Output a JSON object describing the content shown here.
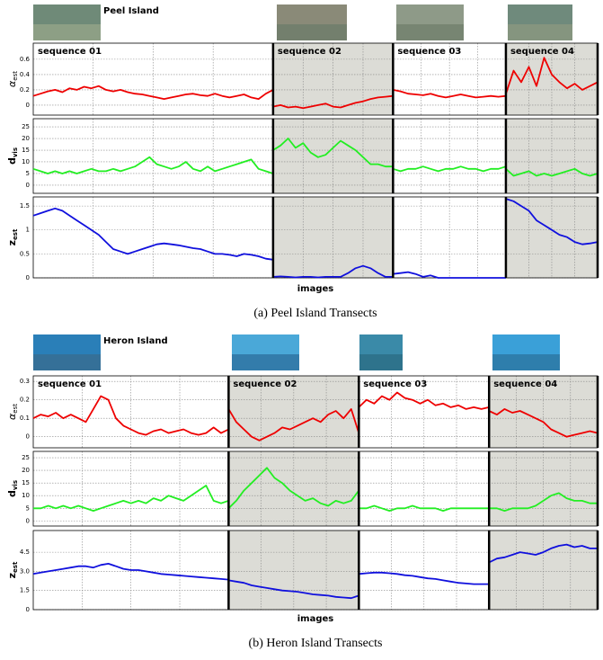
{
  "panels": [
    {
      "location": "Peel Island",
      "sequences": [
        "sequence 01",
        "sequence 02",
        "sequence 03",
        "sequence 04"
      ],
      "shaded": [
        false,
        true,
        false,
        true
      ],
      "xlabel": "images",
      "caption": "(a) Peel Island Transects"
    },
    {
      "location": "Heron Island",
      "sequences": [
        "sequence 01",
        "sequence 02",
        "sequence 03",
        "sequence 04"
      ],
      "shaded": [
        false,
        true,
        false,
        true
      ],
      "xlabel": "images",
      "caption": "(b) Heron Island Transects"
    }
  ],
  "chart_data": [
    {
      "type": "line",
      "ylabel": {
        "symbol": "α",
        "subscript": "est"
      },
      "ylim": [
        -0.13,
        0.81
      ],
      "yticks": [
        0,
        0.2,
        0.4,
        0.6
      ],
      "grid": true,
      "color": "#ee0000",
      "series": [
        {
          "values": [
            0.12,
            0.15,
            0.18,
            0.2,
            0.17,
            0.22,
            0.2,
            0.24,
            0.22,
            0.25,
            0.2,
            0.18,
            0.2,
            0.17,
            0.15,
            0.14,
            0.12,
            0.1,
            0.08,
            0.1,
            0.12,
            0.14,
            0.15,
            0.13,
            0.12,
            0.15,
            0.12,
            0.1,
            0.12,
            0.14,
            0.1,
            0.08,
            0.15,
            0.2
          ]
        },
        {
          "values": [
            -0.02,
            0,
            -0.03,
            -0.02,
            -0.04,
            -0.02,
            0,
            0.02,
            -0.02,
            -0.03,
            0,
            0.03,
            0.05,
            0.08,
            0.1,
            0.11,
            0.12
          ]
        },
        {
          "values": [
            0.2,
            0.18,
            0.15,
            0.14,
            0.13,
            0.15,
            0.12,
            0.1,
            0.12,
            0.14,
            0.12,
            0.1,
            0.11,
            0.12,
            0.11,
            0.12
          ]
        },
        {
          "values": [
            0.15,
            0.45,
            0.3,
            0.5,
            0.25,
            0.62,
            0.4,
            0.3,
            0.22,
            0.28,
            0.2,
            0.25,
            0.3
          ]
        }
      ]
    },
    {
      "type": "line",
      "ylabel": {
        "symbol": "d",
        "subscript": "vis"
      },
      "ylim": [
        -3.5,
        28.5
      ],
      "yticks": [
        0,
        5,
        10,
        15,
        20,
        25
      ],
      "grid": true,
      "color": "#22ee22",
      "series": [
        {
          "values": [
            7,
            6,
            5,
            6,
            5,
            6,
            5,
            6,
            7,
            6,
            6,
            7,
            6,
            7,
            8,
            10,
            12,
            9,
            8,
            7,
            8,
            10,
            7,
            6,
            8,
            6,
            7,
            8,
            9,
            10,
            11,
            7,
            6,
            5
          ]
        },
        {
          "values": [
            15,
            17,
            20,
            16,
            18,
            14,
            12,
            13,
            16,
            19,
            17,
            15,
            12,
            9,
            9,
            8,
            8
          ]
        },
        {
          "values": [
            7,
            6,
            7,
            7,
            8,
            7,
            6,
            7,
            7,
            8,
            7,
            7,
            6,
            7,
            7,
            8
          ]
        },
        {
          "values": [
            7,
            4,
            5,
            6,
            4,
            5,
            4,
            5,
            6,
            7,
            5,
            4,
            5
          ]
        }
      ]
    },
    {
      "type": "line",
      "ylabel": {
        "symbol": "z",
        "subscript": "est"
      },
      "ylim": [
        0,
        1.69
      ],
      "yticks": [
        0,
        0.5,
        1,
        1.5
      ],
      "grid": true,
      "color": "#1010dd",
      "series": [
        {
          "values": [
            1.3,
            1.35,
            1.4,
            1.45,
            1.4,
            1.3,
            1.2,
            1.1,
            1.0,
            0.9,
            0.75,
            0.6,
            0.55,
            0.5,
            0.55,
            0.6,
            0.65,
            0.7,
            0.72,
            0.7,
            0.68,
            0.65,
            0.62,
            0.6,
            0.55,
            0.5,
            0.5,
            0.48,
            0.45,
            0.5,
            0.48,
            0.45,
            0.4,
            0.38
          ]
        },
        {
          "values": [
            0.02,
            0.03,
            0.02,
            0.01,
            0.02,
            0.02,
            0.01,
            0.02,
            0.02,
            0.02,
            0.1,
            0.2,
            0.25,
            0.2,
            0.1,
            0.02,
            0.02
          ]
        },
        {
          "values": [
            0.08,
            0.1,
            0.12,
            0.08,
            0.02,
            0.05,
            0,
            0,
            0,
            0,
            0,
            0,
            0,
            0,
            0,
            0
          ]
        },
        {
          "values": [
            1.65,
            1.6,
            1.5,
            1.4,
            1.2,
            1.1,
            1.0,
            0.9,
            0.85,
            0.75,
            0.7,
            0.72,
            0.75
          ]
        }
      ]
    },
    {
      "type": "line",
      "ylabel": {
        "symbol": "α",
        "subscript": "est"
      },
      "ylim": [
        -0.06,
        0.33
      ],
      "yticks": [
        0,
        0.1,
        0.2,
        0.3
      ],
      "grid": true,
      "color": "#ee0000",
      "series": [
        {
          "values": [
            0.1,
            0.12,
            0.11,
            0.13,
            0.1,
            0.12,
            0.1,
            0.08,
            0.15,
            0.22,
            0.2,
            0.1,
            0.06,
            0.04,
            0.02,
            0.01,
            0.03,
            0.04,
            0.02,
            0.03,
            0.04,
            0.02,
            0.01,
            0.02,
            0.05,
            0.02,
            0.04
          ]
        },
        {
          "values": [
            0.15,
            0.08,
            0.04,
            0,
            -0.02,
            0,
            0.02,
            0.05,
            0.04,
            0.06,
            0.08,
            0.1,
            0.08,
            0.12,
            0.14,
            0.1,
            0.15,
            0.02
          ]
        },
        {
          "values": [
            0.16,
            0.2,
            0.18,
            0.22,
            0.2,
            0.24,
            0.21,
            0.2,
            0.18,
            0.2,
            0.17,
            0.18,
            0.16,
            0.17,
            0.15,
            0.16,
            0.15,
            0.16
          ]
        },
        {
          "values": [
            0.14,
            0.12,
            0.15,
            0.13,
            0.14,
            0.12,
            0.1,
            0.08,
            0.04,
            0.02,
            0,
            0.01,
            0.02,
            0.03,
            0.02
          ]
        }
      ]
    },
    {
      "type": "line",
      "ylabel": {
        "symbol": "d",
        "subscript": "vis"
      },
      "ylim": [
        -2,
        27.5
      ],
      "yticks": [
        0,
        5,
        10,
        15,
        20,
        25
      ],
      "grid": true,
      "color": "#22ee22",
      "series": [
        {
          "values": [
            5,
            5,
            6,
            5,
            6,
            5,
            6,
            5,
            4,
            5,
            6,
            7,
            8,
            7,
            8,
            7,
            9,
            8,
            10,
            9,
            8,
            10,
            12,
            14,
            8,
            7,
            8
          ]
        },
        {
          "values": [
            5,
            8,
            12,
            15,
            18,
            21,
            17,
            15,
            12,
            10,
            8,
            9,
            7,
            6,
            8,
            7,
            8,
            12
          ]
        },
        {
          "values": [
            5,
            5,
            6,
            5,
            4,
            5,
            5,
            6,
            5,
            5,
            5,
            4,
            5,
            5,
            5,
            5,
            5,
            5
          ]
        },
        {
          "values": [
            5,
            5,
            4,
            5,
            5,
            5,
            6,
            8,
            10,
            11,
            9,
            8,
            8,
            7,
            7
          ]
        }
      ]
    },
    {
      "type": "line",
      "ylabel": {
        "symbol": "z",
        "subscript": "est"
      },
      "ylim": [
        0,
        6.2
      ],
      "yticks": [
        0,
        1.5,
        {
          "value": 3,
          "label": "3.0"
        },
        4.5
      ],
      "grid": true,
      "color": "#1010dd",
      "series": [
        {
          "values": [
            2.8,
            2.9,
            3.0,
            3.1,
            3.2,
            3.3,
            3.4,
            3.4,
            3.3,
            3.5,
            3.6,
            3.4,
            3.2,
            3.1,
            3.1,
            3.0,
            2.9,
            2.8,
            2.75,
            2.7,
            2.65,
            2.6,
            2.55,
            2.5,
            2.45,
            2.4,
            2.35
          ]
        },
        {
          "values": [
            2.3,
            2.2,
            2.1,
            1.9,
            1.8,
            1.7,
            1.6,
            1.5,
            1.45,
            1.4,
            1.3,
            1.2,
            1.15,
            1.1,
            1.0,
            0.95,
            0.9,
            1.1
          ]
        },
        {
          "values": [
            2.8,
            2.85,
            2.9,
            2.9,
            2.85,
            2.8,
            2.7,
            2.65,
            2.55,
            2.45,
            2.4,
            2.3,
            2.2,
            2.1,
            2.05,
            2.0,
            2.0,
            2.0
          ]
        },
        {
          "values": [
            3.7,
            4.0,
            4.1,
            4.3,
            4.5,
            4.4,
            4.3,
            4.5,
            4.8,
            5.0,
            5.1,
            4.9,
            5.0,
            4.8,
            4.8
          ]
        }
      ]
    }
  ]
}
